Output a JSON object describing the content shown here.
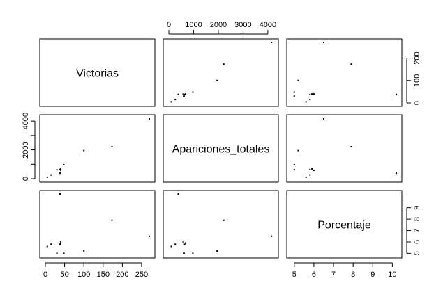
{
  "chart_data": {
    "type": "scatter",
    "title": "",
    "variables": [
      "Victorias",
      "Apariciones_totales",
      "Porcentaje"
    ],
    "ticks": {
      "Victorias": [
        0,
        50,
        100,
        150,
        200,
        250
      ],
      "Apariciones_totales": [
        0,
        1000,
        2000,
        3000,
        4000
      ],
      "Porcentaje": [
        5,
        6,
        7,
        8,
        9,
        10
      ]
    },
    "tick_labels_upright": {
      "Apariciones_totales": [
        "0",
        "2000",
        "4000"
      ],
      "Porcentaje_right": [
        "5",
        "6",
        "7",
        "8",
        "9"
      ],
      "Victorias_right": [
        "0",
        "100",
        "200"
      ]
    },
    "ranges": {
      "Victorias": [
        0,
        270
      ],
      "Apariciones_totales": [
        0,
        4200
      ],
      "Porcentaje": [
        4.9,
        10.2
      ]
    },
    "points": [
      {
        "Victorias": 270,
        "Apariciones_totales": 4150,
        "Porcentaje": 6.5
      },
      {
        "Victorias": 173,
        "Apariciones_totales": 2220,
        "Porcentaje": 7.9
      },
      {
        "Victorias": 100,
        "Apariciones_totales": 1950,
        "Porcentaje": 5.2
      },
      {
        "Victorias": 48,
        "Apariciones_totales": 970,
        "Porcentaje": 5.0
      },
      {
        "Victorias": 40,
        "Apariciones_totales": 680,
        "Porcentaje": 5.9
      },
      {
        "Victorias": 38,
        "Apariciones_totales": 640,
        "Porcentaje": 5.8
      },
      {
        "Victorias": 30,
        "Apariciones_totales": 620,
        "Porcentaje": 5.0
      },
      {
        "Victorias": 15,
        "Apariciones_totales": 260,
        "Porcentaje": 5.8
      },
      {
        "Victorias": 5,
        "Apariciones_totales": 100,
        "Porcentaje": 5.6
      },
      {
        "Victorias": 38,
        "Apariciones_totales": 380,
        "Porcentaje": 10.2
      },
      {
        "Victorias": 40,
        "Apariciones_totales": 580,
        "Porcentaje": 6.0
      }
    ],
    "grid": false
  }
}
